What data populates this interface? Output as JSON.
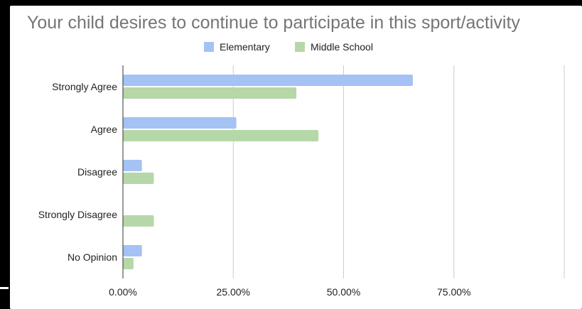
{
  "chart_data": {
    "type": "bar",
    "orientation": "horizontal",
    "title": "Your child desires to continue to participate in this sport/activity",
    "categories": [
      "Strongly Agree",
      "Agree",
      "Disagree",
      "Strongly Disagree",
      "No Opinion"
    ],
    "series": [
      {
        "name": "Elementary",
        "color": "#a4c2f4",
        "values": [
          65.7,
          25.7,
          4.3,
          0,
          4.3
        ]
      },
      {
        "name": "Middle School",
        "color": "#b6d7a8",
        "values": [
          39.3,
          44.3,
          7.0,
          7.0,
          2.4
        ]
      }
    ],
    "x_ticks": [
      "0.00%",
      "25.00%",
      "50.00%",
      "75.00%"
    ],
    "x_tick_values": [
      0,
      25,
      50,
      75
    ],
    "xlim": [
      0,
      100
    ],
    "grid": true,
    "legend_position": "top"
  }
}
